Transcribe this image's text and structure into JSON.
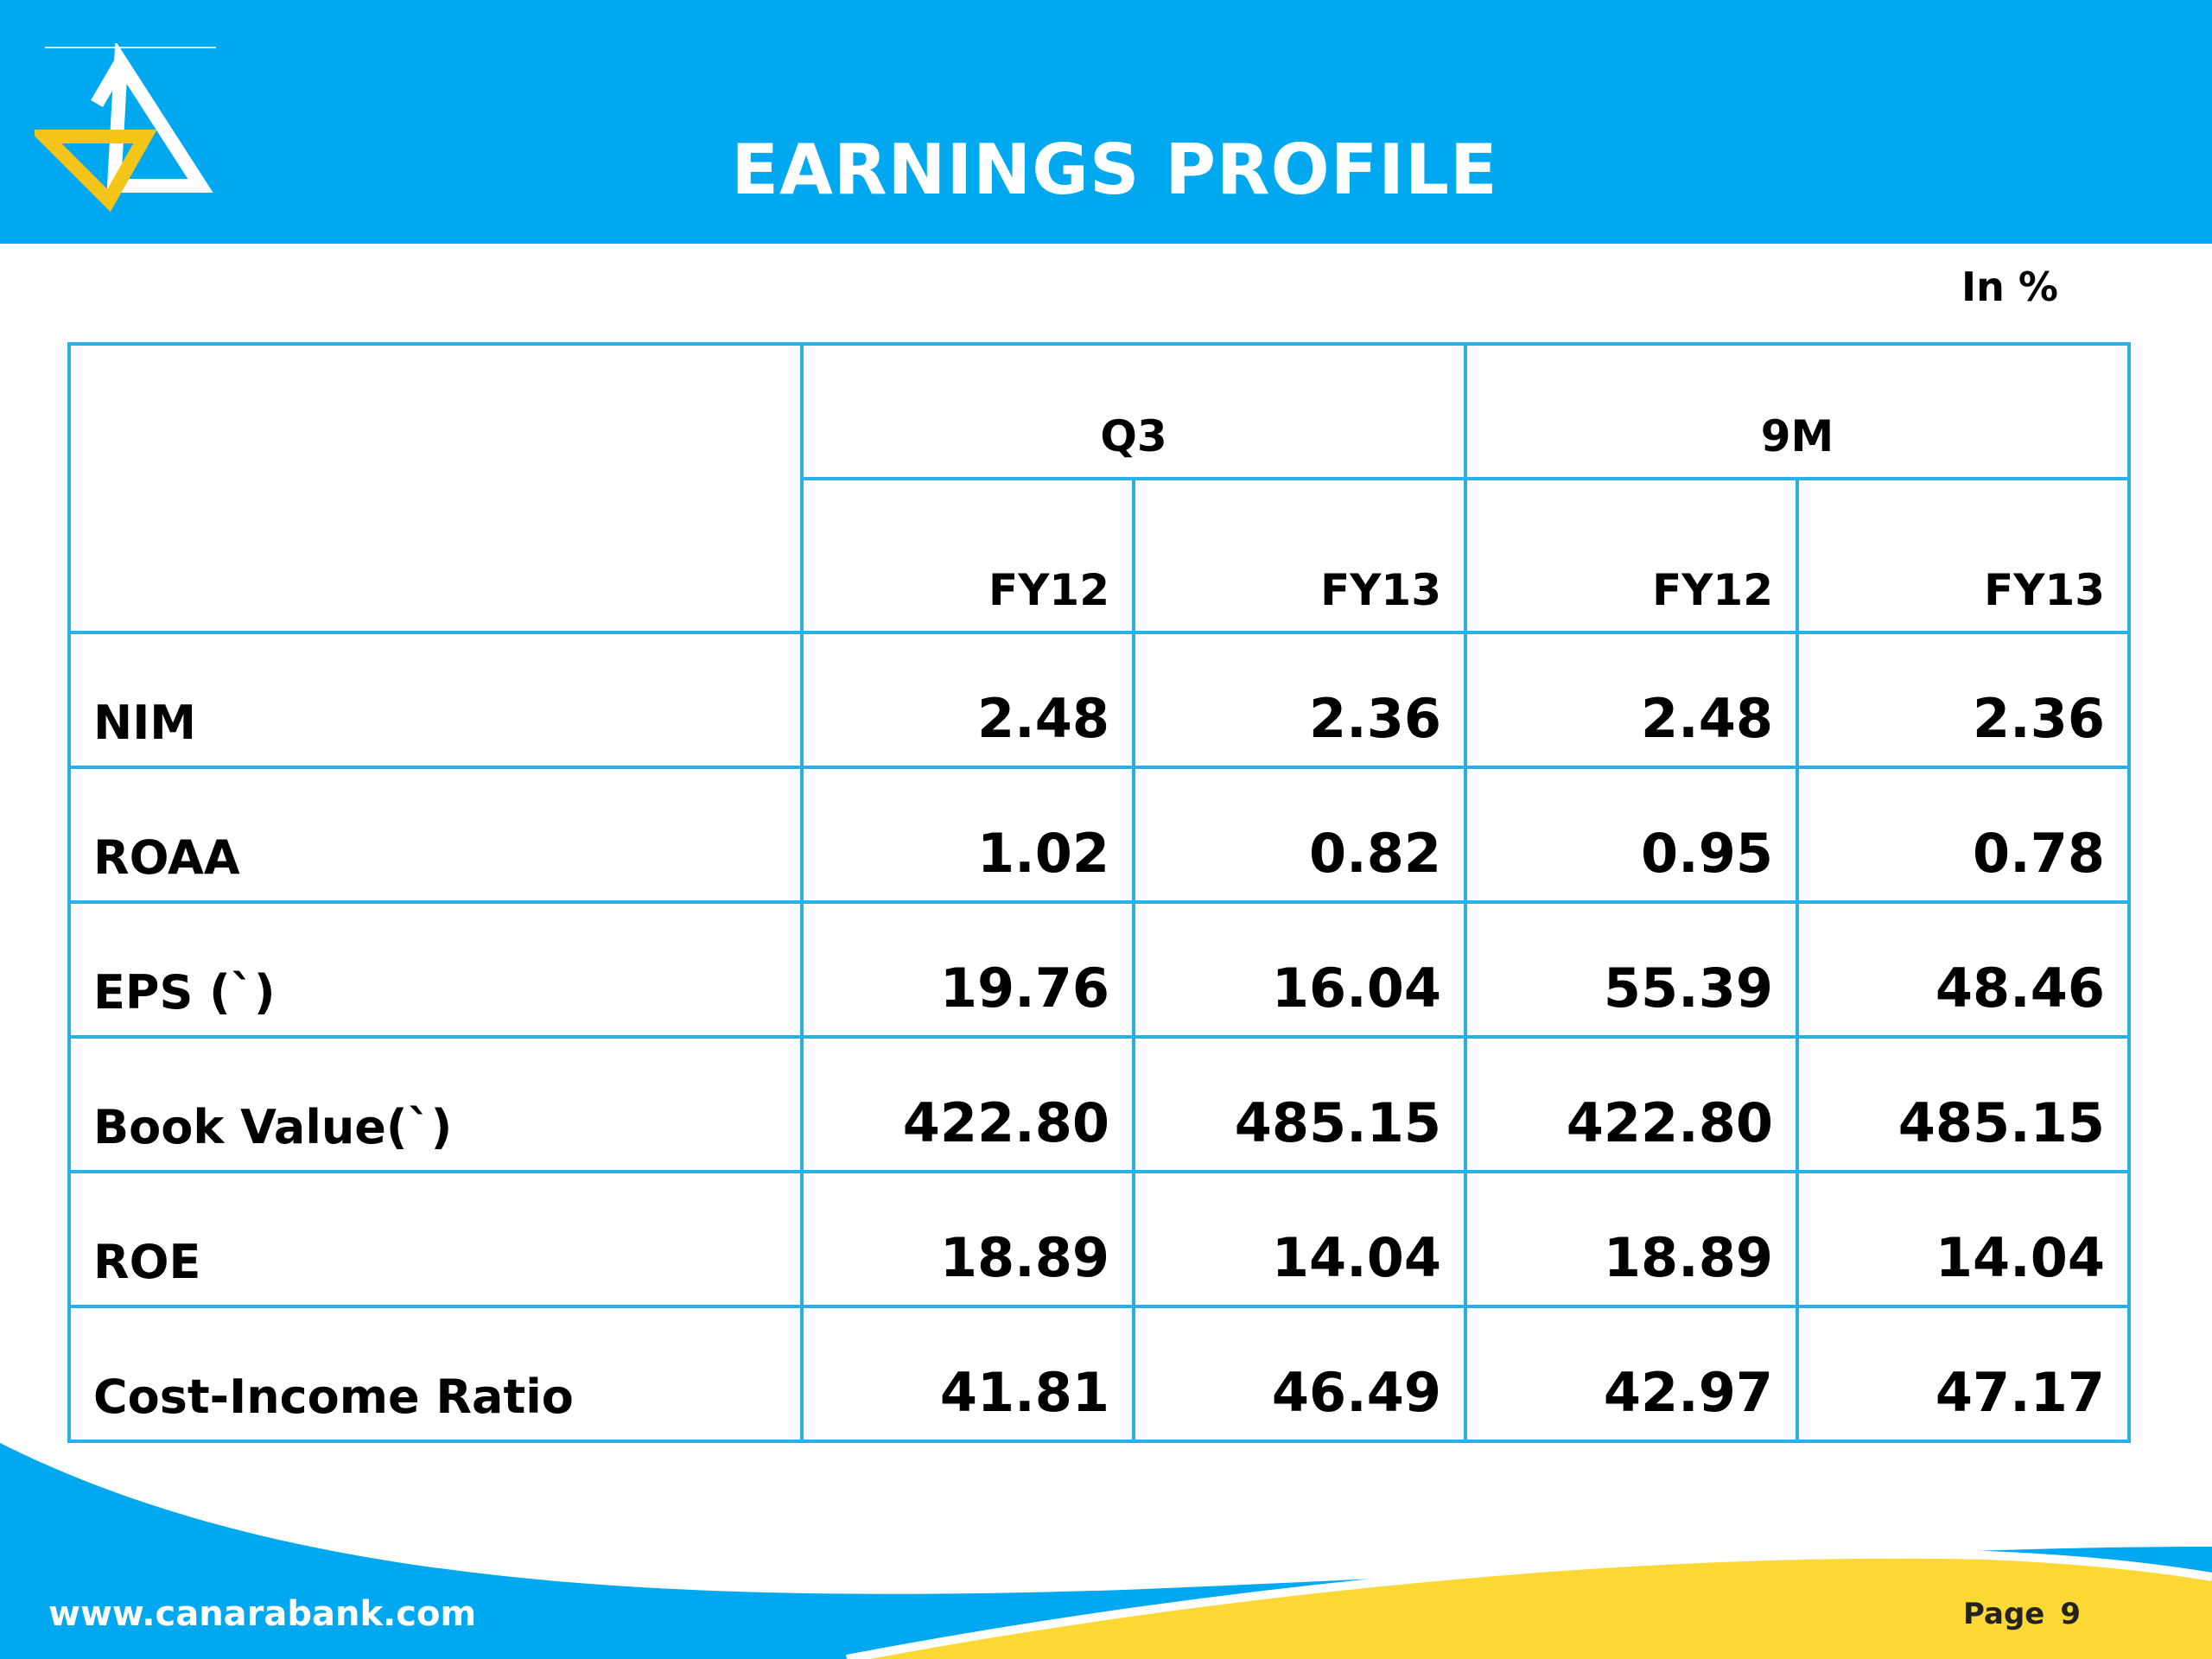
{
  "header": {
    "title": "EARNINGS PROFILE"
  },
  "unit_label": "In %",
  "table": {
    "groups": [
      "Q3",
      "9M"
    ],
    "years": [
      "FY12",
      "FY13",
      "FY12",
      "FY13"
    ],
    "rows": [
      {
        "label": "NIM",
        "values": [
          "2.48",
          "2.36",
          "2.48",
          "2.36"
        ]
      },
      {
        "label": "ROAA",
        "values": [
          "1.02",
          "0.82",
          "0.95",
          "0.78"
        ]
      },
      {
        "label": "EPS (`)",
        "values": [
          "19.76",
          "16.04",
          "55.39",
          "48.46"
        ]
      },
      {
        "label": "Book Value(`)",
        "values": [
          "422.80",
          "485.15",
          "422.80",
          "485.15"
        ]
      },
      {
        "label": "ROE",
        "values": [
          "18.89",
          "14.04",
          "18.89",
          "14.04"
        ]
      },
      {
        "label": "Cost-Income Ratio",
        "values": [
          "41.81",
          "46.49",
          "42.97",
          "47.17"
        ]
      }
    ]
  },
  "footer": {
    "url": "www.canarabank.com",
    "page_label": "Page",
    "page_number": "9"
  },
  "colors": {
    "header_blue": "#00a9ef",
    "table_border": "#2ab0e6",
    "wave_yellow": "#fcd835",
    "logo_yellow": "#f5c518"
  }
}
